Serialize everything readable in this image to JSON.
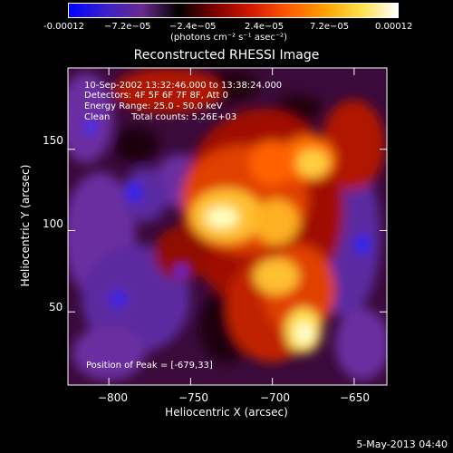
{
  "footer": {
    "date_stamp": "5-May-2013 04:40"
  },
  "colorbar": {
    "colors": [
      "#0000ff",
      "#3b1fc9",
      "#6a2a8f",
      "#000000",
      "#7f0000",
      "#d21a00",
      "#ff5a00",
      "#ffa000",
      "#ffe04a",
      "#ffffff"
    ],
    "tick_labels": [
      "-0.00012",
      "−7.2e−05",
      "−2.4e−05",
      "2.4e−05",
      "7.2e−05",
      "0.00012"
    ],
    "units": "(photons cm⁻² s⁻¹ asec⁻²)"
  },
  "chart_data": {
    "type": "heatmap",
    "title": "Reconstructed RHESSI Image",
    "xlabel": "Heliocentric X (arcsec)",
    "ylabel": "Heliocentric Y (arcsec)",
    "xlim": [
      -825,
      -630
    ],
    "ylim": [
      5,
      200
    ],
    "x_ticks": [
      -800,
      -750,
      -700,
      -650
    ],
    "y_ticks": [
      50,
      100,
      150
    ],
    "x_tick_labels": [
      "−800",
      "−750",
      "−700",
      "−650"
    ],
    "y_tick_labels": [
      "50",
      "100",
      "150"
    ],
    "value_range": [
      -0.00012,
      0.00012
    ],
    "annotations": {
      "time_range": "10-Sep-2002 13:32:46.000 to 13:38:24.000",
      "detectors": "Detectors: 4F 5F 6F 7F 8F, Att 0",
      "energy_range": "Energy Range: 25.0 - 50.0 keV",
      "method": "Clean",
      "total_counts": "Total counts: 5.26E+03",
      "peak": "Position of Peak = [-679,33]"
    },
    "peak_position": [
      -679,
      33
    ]
  }
}
